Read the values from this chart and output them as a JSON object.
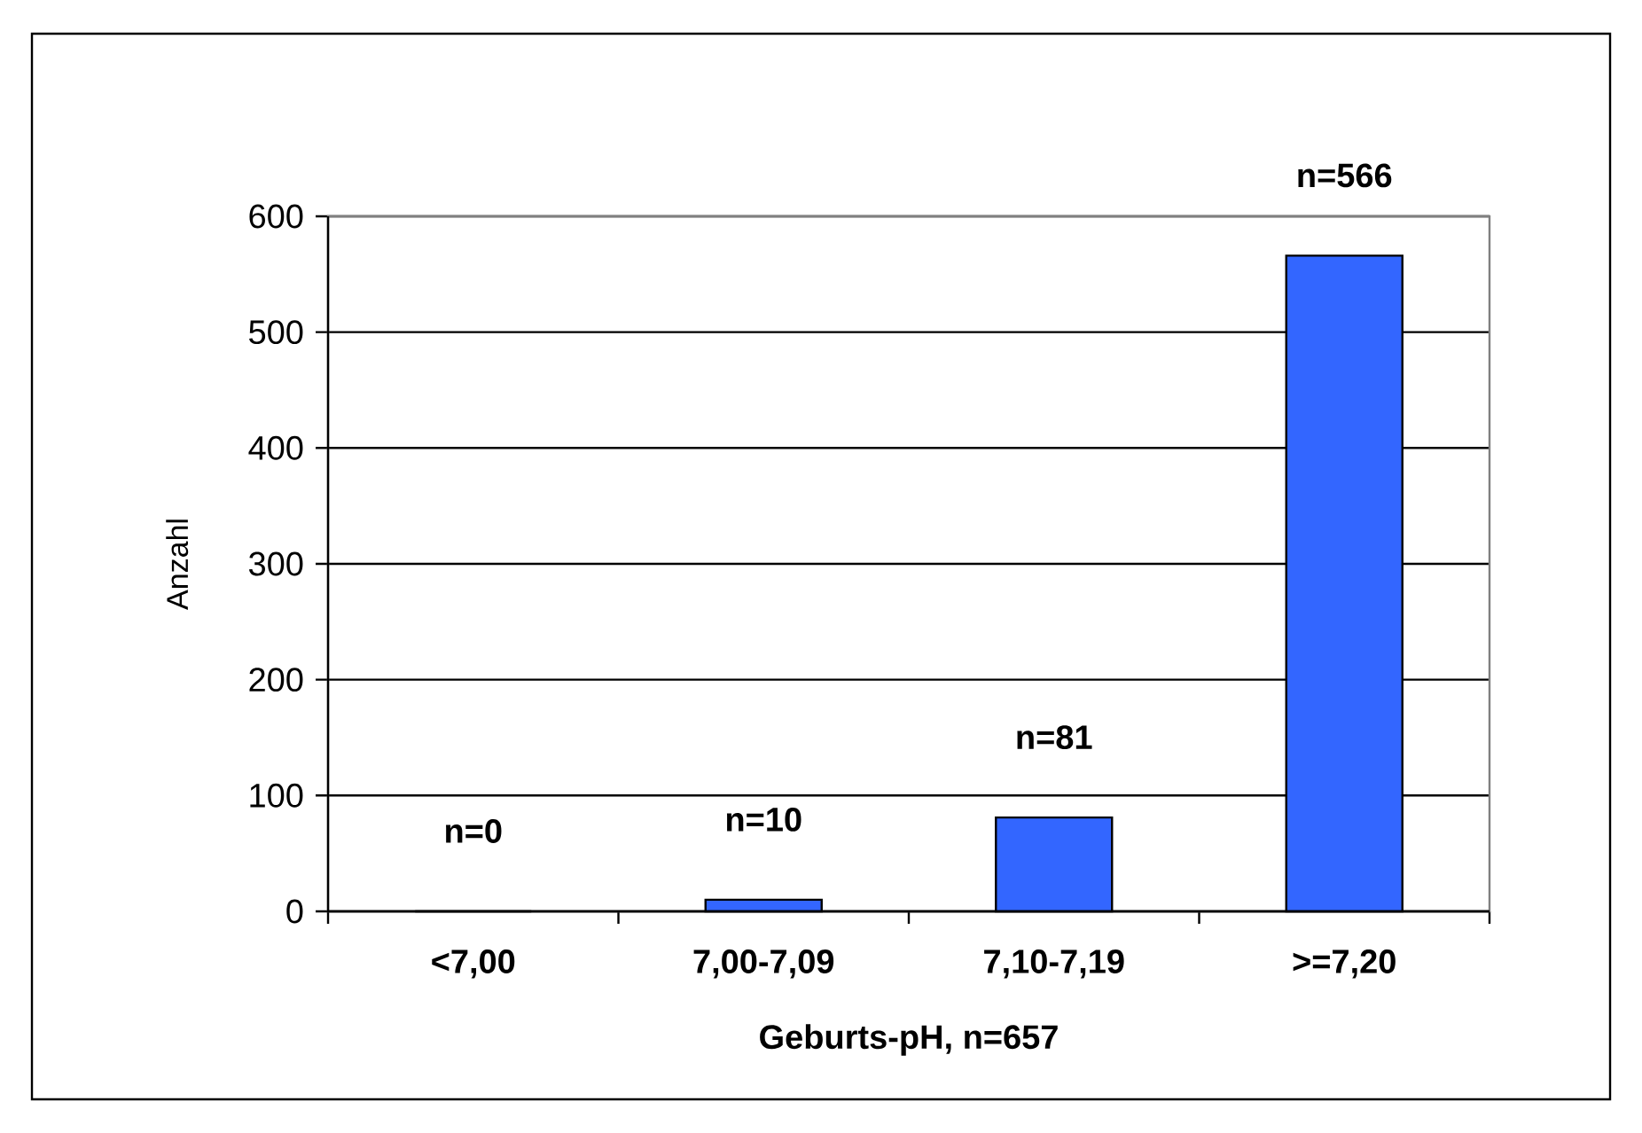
{
  "chart_data": {
    "type": "bar",
    "xlabel": "Geburts-pH, n=657",
    "ylabel": "Anzahl",
    "categories": [
      "<7,00",
      "7,00-7,09",
      "7,10-7,19",
      ">=7,20"
    ],
    "values": [
      0,
      10,
      81,
      566
    ],
    "value_labels": [
      "n=0",
      "n=10",
      "n=81",
      "n=566"
    ],
    "color": "#3366ff",
    "ylim": [
      0,
      600
    ],
    "yticks": [
      0,
      100,
      200,
      300,
      400,
      500,
      600
    ],
    "grid": "y"
  }
}
